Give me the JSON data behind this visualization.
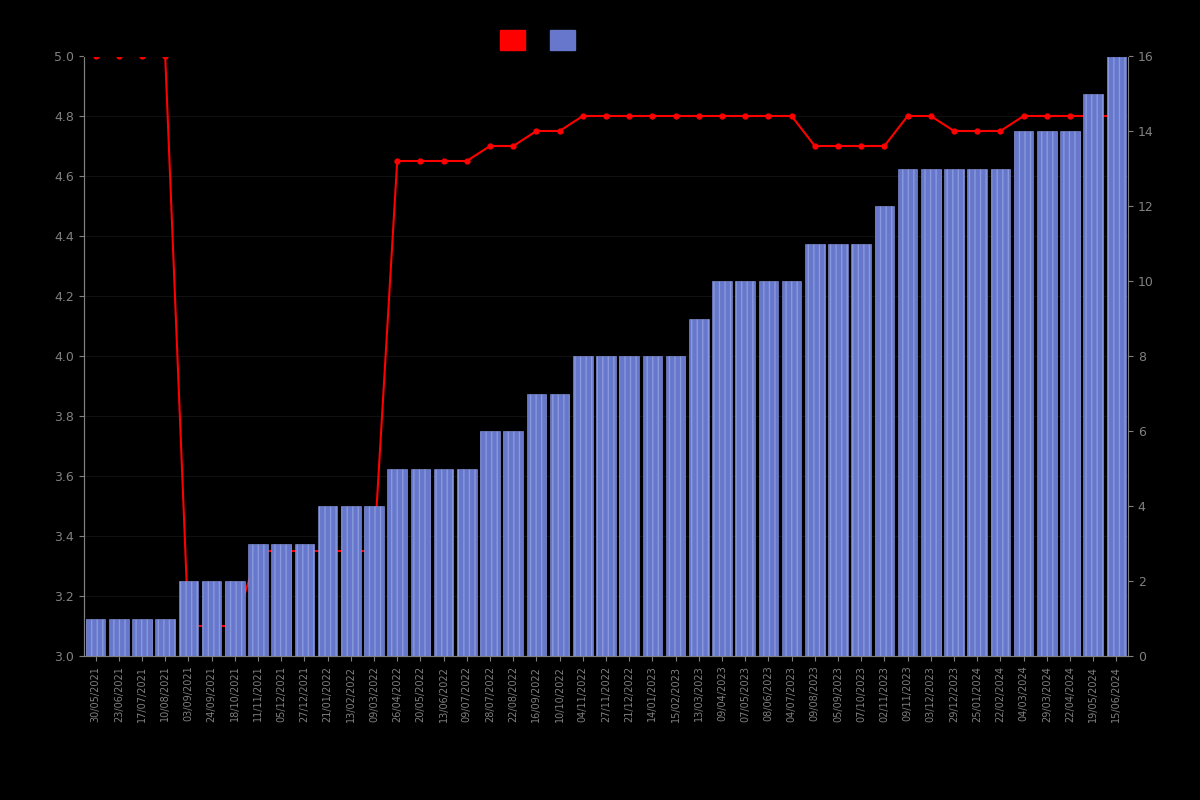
{
  "background_color": "#000000",
  "text_color": "#808080",
  "bar_color": "#6677cc",
  "bar_edge_color": "#8899dd",
  "line_color": "#ff0000",
  "marker_color": "#ff0000",
  "left_ylim": [
    3.0,
    5.0
  ],
  "right_ylim": [
    0,
    16
  ],
  "dates": [
    "30/05/2021",
    "23/06/2021",
    "17/07/2021",
    "10/08/2021",
    "03/09/2021",
    "24/09/2021",
    "18/10/2021",
    "11/11/2021",
    "05/12/2021",
    "27/12/2021",
    "21/01/2022",
    "13/02/2022",
    "09/03/2022",
    "26/04/2022",
    "20/05/2022",
    "13/06/2022",
    "09/07/2022",
    "28/07/2022",
    "22/08/2022",
    "16/09/2022",
    "10/10/2022",
    "04/11/2022",
    "27/11/2022",
    "21/12/2022",
    "14/01/2023",
    "15/02/2023",
    "13/03/2023",
    "09/04/2023",
    "07/05/2023",
    "08/06/2023",
    "04/07/2023",
    "09/08/2023",
    "05/09/2023",
    "07/10/2023",
    "02/11/2023",
    "09/11/2023",
    "03/12/2023",
    "29/12/2023",
    "25/01/2024",
    "22/02/2024",
    "04/03/2024",
    "29/03/2024",
    "22/04/2024",
    "19/05/2024",
    "15/06/2024"
  ],
  "avg_ratings": [
    5.0,
    5.0,
    5.0,
    5.0,
    3.1,
    3.1,
    3.1,
    3.35,
    3.35,
    3.35,
    3.35,
    3.35,
    3.35,
    4.65,
    4.65,
    4.65,
    4.65,
    4.7,
    4.7,
    4.75,
    4.75,
    4.8,
    4.8,
    4.8,
    4.8,
    4.8,
    4.8,
    4.8,
    4.8,
    4.8,
    4.8,
    4.7,
    4.7,
    4.7,
    4.7,
    4.8,
    4.8,
    4.75,
    4.75,
    4.75,
    4.8,
    4.8,
    4.8,
    4.8,
    4.8
  ],
  "counts": [
    1,
    1,
    1,
    1,
    2,
    2,
    2,
    3,
    3,
    3,
    4,
    4,
    4,
    5,
    5,
    5,
    5,
    6,
    6,
    7,
    7,
    8,
    8,
    8,
    8,
    8,
    9,
    10,
    10,
    10,
    10,
    11,
    11,
    11,
    12,
    13,
    13,
    13,
    13,
    13,
    14,
    14,
    14,
    15,
    16
  ]
}
